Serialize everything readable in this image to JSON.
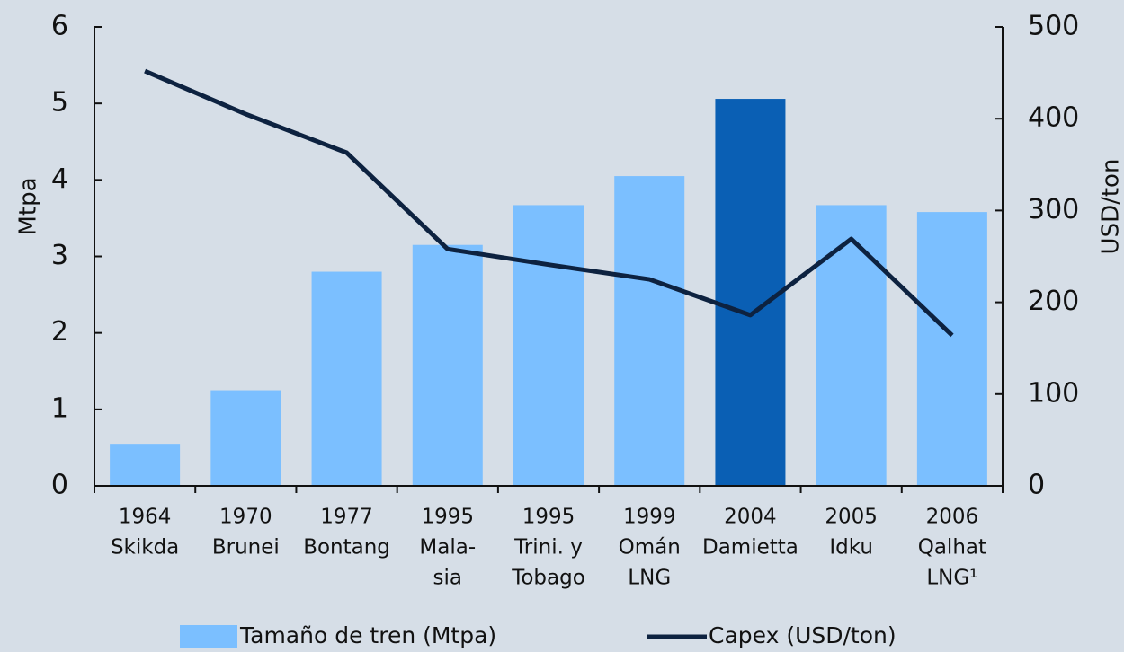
{
  "chart_data": {
    "type": "bar_line",
    "categories": [
      [
        "1964",
        "Skikda"
      ],
      [
        "1970",
        "Brunei"
      ],
      [
        "1977",
        "Bontang"
      ],
      [
        "1995",
        "Mala-",
        "sia"
      ],
      [
        "1995",
        "Trini. y",
        "Tobago"
      ],
      [
        "1999",
        "Omán",
        "LNG"
      ],
      [
        "2004",
        "Damietta"
      ],
      [
        "2005",
        "Idku"
      ],
      [
        "2006",
        "Qalhat",
        "LNG¹"
      ]
    ],
    "series": [
      {
        "name": "Tamaño de tren (Mtpa)",
        "type": "bar",
        "color": "#7bbfff",
        "colors": [
          "#7bbfff",
          "#7bbfff",
          "#7bbfff",
          "#7bbfff",
          "#7bbfff",
          "#7bbfff",
          "#0a5fb4",
          "#7bbfff",
          "#7bbfff"
        ],
        "values": [
          0.55,
          1.25,
          2.8,
          3.15,
          3.67,
          4.05,
          5.06,
          3.67,
          3.58
        ]
      },
      {
        "name": "Capex (USD/ton)",
        "type": "line",
        "axis": "y2",
        "color": "#0d2240",
        "values": [
          452,
          405,
          363,
          258,
          241,
          225,
          186,
          269,
          164
        ]
      }
    ],
    "ylabel": "Mtpa",
    "y2label": "USD/ton",
    "ylim": [
      0,
      6
    ],
    "yticks": [
      0,
      1,
      2,
      3,
      4,
      5,
      6
    ],
    "y2lim": [
      0,
      500
    ],
    "y2ticks": [
      0,
      100,
      200,
      300,
      400,
      500
    ]
  }
}
